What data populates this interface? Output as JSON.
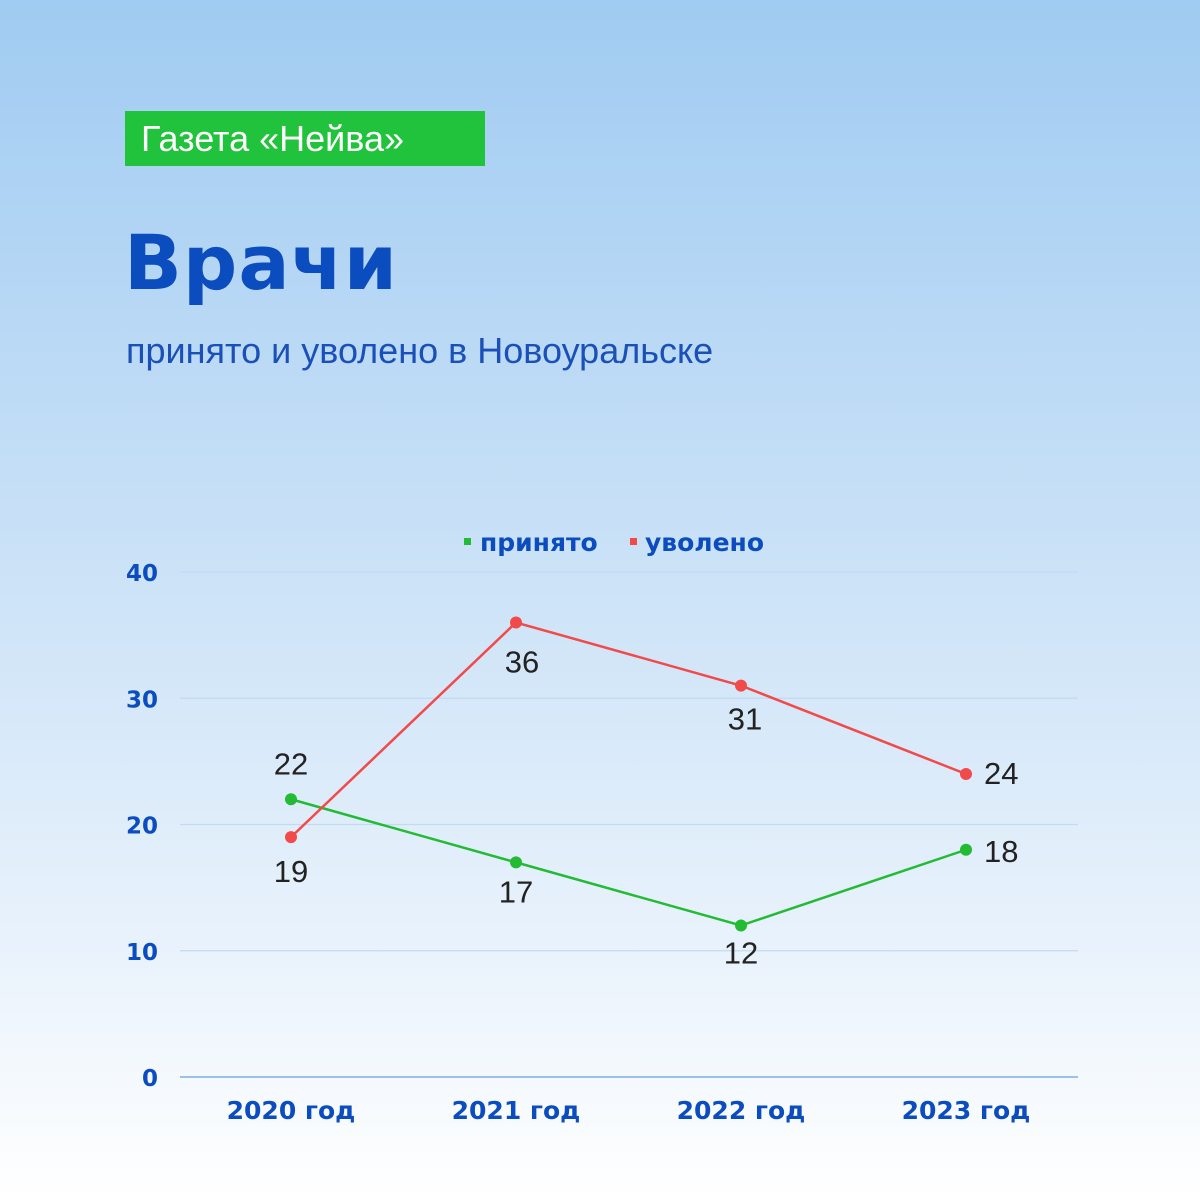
{
  "badge": "Газета «Нейва»",
  "title": "Врачи",
  "subtitle": "принято и уволено в Новоуральске",
  "colors": {
    "hired": "#22bb33",
    "fired": "#f24a4a",
    "axis": "#0b4cbf"
  },
  "chart_data": {
    "type": "line",
    "categories": [
      "2020 год",
      "2021 год",
      "2022 год",
      "2023 год"
    ],
    "ylim": [
      0,
      40
    ],
    "yticks": [
      0,
      10,
      20,
      30,
      40
    ],
    "grid": true,
    "legend_position": "top-center",
    "series": [
      {
        "name": "принято",
        "values": [
          22,
          17,
          12,
          18
        ]
      },
      {
        "name": "уволено",
        "values": [
          19,
          36,
          31,
          24
        ]
      }
    ]
  }
}
